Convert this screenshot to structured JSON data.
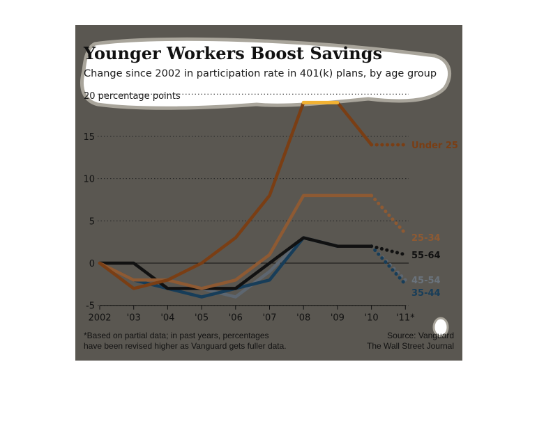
{
  "chart_data": {
    "type": "line",
    "title": "Younger Workers Boost Savings",
    "subtitle": "Change since 2002 in participation rate in 401(k) plans, by age group",
    "ylabel": "20 percentage points",
    "categories": [
      "2002",
      "'03",
      "'04",
      "'05",
      "'06",
      "'07",
      "'08",
      "'09",
      "'10",
      "'11*"
    ],
    "yticks": [
      "-5",
      "0",
      "5",
      "10",
      "15"
    ],
    "ylim": [
      -5,
      20
    ],
    "grid": true,
    "series": [
      {
        "name": "Under 25",
        "color": "#7a3e14",
        "values": [
          0,
          -3,
          -2,
          0,
          3,
          8,
          19,
          19,
          14,
          14
        ]
      },
      {
        "name": "25-34",
        "color": "#8e5a33",
        "values": [
          0,
          -2,
          -2,
          -3,
          -2,
          1,
          8,
          8,
          8,
          3.5
        ]
      },
      {
        "name": "55-64",
        "color": "#111111",
        "values": [
          0,
          0,
          -3,
          -3,
          -3,
          0,
          3,
          2,
          2,
          1
        ]
      },
      {
        "name": "45-54",
        "color": "#5d6670",
        "values": [
          0,
          -2,
          -3,
          -3,
          -4,
          -1,
          3,
          2,
          2,
          -2
        ]
      },
      {
        "name": "35-44",
        "color": "#173d59",
        "values": [
          0,
          -2,
          -3,
          -4,
          -3,
          -2,
          3,
          2,
          2,
          -2.5
        ]
      }
    ],
    "highlight_color": "#f2b233",
    "footnote_lines": [
      "*Based on partial data; in past years, percentages",
      "have been revised higher as Vanguard gets fuller data."
    ],
    "source_lines": [
      "Source: Vanguard",
      "The Wall Street Journal"
    ]
  }
}
